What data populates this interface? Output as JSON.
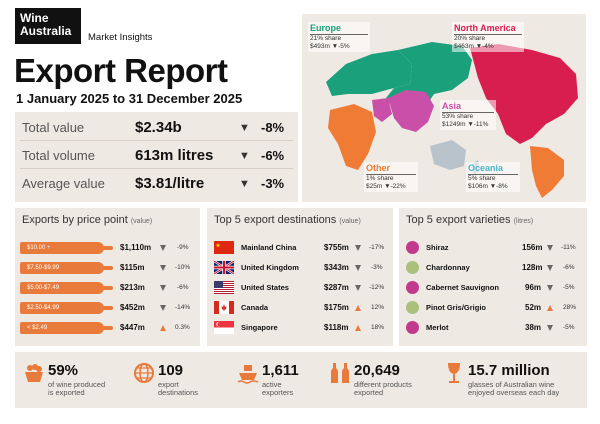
{
  "brand": {
    "logo_line1": "Wine",
    "logo_line2": "Australia",
    "subtitle": "Market Insights"
  },
  "title": "Export Report",
  "date_range": "1 January 2025 to 31 December 2025",
  "summary": [
    {
      "label": "Total value",
      "value": "$2.34b",
      "change": "-8%",
      "direction": "down"
    },
    {
      "label": "Total volume",
      "value": "613m litres",
      "change": "-6%",
      "direction": "down"
    },
    {
      "label": "Average value",
      "value": "$3.81/litre",
      "change": "-3%",
      "direction": "down"
    }
  ],
  "regions": {
    "europe": {
      "name": "Europe",
      "share": "21% share",
      "value": "$493m",
      "change": "-5%",
      "color": "#1aa07a"
    },
    "north_america": {
      "name": "North America",
      "share": "20% share",
      "value": "$463m",
      "change": "-4%",
      "color": "#d81e4f"
    },
    "asia": {
      "name": "Asia",
      "share": "53% share",
      "value": "$1249m",
      "change": "-11%",
      "color": "#c94fa8"
    },
    "other": {
      "name": "Other",
      "share": "1% share",
      "value": "$25m",
      "change": "-22%",
      "color": "#f07b35"
    },
    "oceania": {
      "name": "Oceania",
      "share": "5% share",
      "value": "$106m",
      "change": "-8%",
      "color": "#4bb6c8"
    }
  },
  "price_points": {
    "title": "Exports by price point",
    "unit": "(value)",
    "rows": [
      {
        "band": "$10.00 +",
        "value": "$1,110m",
        "change": "-9%",
        "direction": "down"
      },
      {
        "band": "$7.50-$9.99",
        "value": "$115m",
        "change": "-10%",
        "direction": "down"
      },
      {
        "band": "$5.00-$7.49",
        "value": "$213m",
        "change": "-6%",
        "direction": "down"
      },
      {
        "band": "$2.50-$4.99",
        "value": "$452m",
        "change": "-14%",
        "direction": "down"
      },
      {
        "band": "< $2.49",
        "value": "$447m",
        "change": "0.3%",
        "direction": "up"
      }
    ]
  },
  "destinations": {
    "title": "Top 5 export destinations",
    "unit": "(value)",
    "rows": [
      {
        "name": "Mainland China",
        "value": "$755m",
        "change": "-17%",
        "direction": "down",
        "flag": "china-flag"
      },
      {
        "name": "United Kingdom",
        "value": "$343m",
        "change": "-3%",
        "direction": "down",
        "flag": "uk-flag"
      },
      {
        "name": "United States",
        "value": "$287m",
        "change": "-12%",
        "direction": "down",
        "flag": "usa-flag"
      },
      {
        "name": "Canada",
        "value": "$175m",
        "change": "12%",
        "direction": "up",
        "flag": "canada-flag"
      },
      {
        "name": "Singapore",
        "value": "$118m",
        "change": "18%",
        "direction": "up",
        "flag": "singapore-flag"
      }
    ]
  },
  "varieties": {
    "title": "Top 5 export varieties",
    "unit": "(litres)",
    "rows": [
      {
        "name": "Shiraz",
        "value": "156m",
        "change": "-11%",
        "direction": "down",
        "color": "#c13a8c"
      },
      {
        "name": "Chardonnay",
        "value": "128m",
        "change": "-6%",
        "direction": "down",
        "color": "#a9c07a"
      },
      {
        "name": "Cabernet Sauvignon",
        "value": "96m",
        "change": "-5%",
        "direction": "down",
        "color": "#c13a8c"
      },
      {
        "name": "Pinot Gris/Grigio",
        "value": "52m",
        "change": "28%",
        "direction": "up",
        "color": "#a9c07a"
      },
      {
        "name": "Merlot",
        "value": "38m",
        "change": "-5%",
        "direction": "down",
        "color": "#c13a8c"
      }
    ]
  },
  "stats": [
    {
      "number": "59%",
      "caption1": "of wine produced",
      "caption2": "is exported",
      "icon": "grape-basket-icon"
    },
    {
      "number": "109",
      "caption1": "export",
      "caption2": "destinations",
      "icon": "globe-icon"
    },
    {
      "number": "1,611",
      "caption1": "active",
      "caption2": "exporters",
      "icon": "ship-icon"
    },
    {
      "number": "20,649",
      "caption1": "different products",
      "caption2": "exported",
      "icon": "bottles-icon"
    },
    {
      "number": "15.7 million",
      "caption1": "glasses of Australian wine",
      "caption2": "enjoyed overseas each day",
      "icon": "wine-glass-icon"
    }
  ],
  "colors": {
    "accent": "#e87a3c",
    "panel_bg": "#efe9e3",
    "dark": "#111111"
  }
}
